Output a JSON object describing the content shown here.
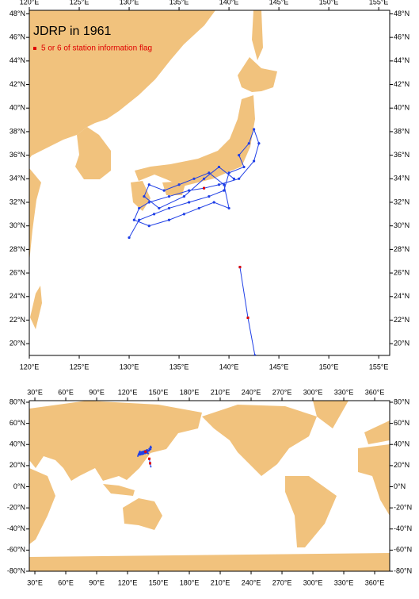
{
  "top_map": {
    "title": "JDRP in 1961",
    "legend": "5 or 6 of station information flag",
    "xlim": [
      120,
      156.1
    ],
    "ylim": [
      19,
      48.3
    ],
    "xticks": [
      {
        "value": 120,
        "label": "120°E"
      },
      {
        "value": 125,
        "label": "125°E"
      },
      {
        "value": 130,
        "label": "130°E"
      },
      {
        "value": 135,
        "label": "135°E"
      },
      {
        "value": 140,
        "label": "140°E"
      },
      {
        "value": 145,
        "label": "145°E"
      },
      {
        "value": 150,
        "label": "150°E"
      },
      {
        "value": 155,
        "label": "155°E"
      }
    ],
    "yticks": [
      {
        "value": 20,
        "label": "20°N"
      },
      {
        "value": 22,
        "label": "22°N"
      },
      {
        "value": 24,
        "label": "24°N"
      },
      {
        "value": 26,
        "label": "26°N"
      },
      {
        "value": 28,
        "label": "28°N"
      },
      {
        "value": 30,
        "label": "30°N"
      },
      {
        "value": 32,
        "label": "32°N"
      },
      {
        "value": 34,
        "label": "34°N"
      },
      {
        "value": 36,
        "label": "36°N"
      },
      {
        "value": 38,
        "label": "38°N"
      },
      {
        "value": 40,
        "label": "40°N"
      },
      {
        "value": 42,
        "label": "42°N"
      },
      {
        "value": 44,
        "label": "44°N"
      },
      {
        "value": 46,
        "label": "46°N"
      },
      {
        "value": 48,
        "label": "48°N"
      }
    ]
  },
  "bottom_map": {
    "xlim": [
      24.6,
      374.6
    ],
    "ylim": [
      -80,
      81.5
    ],
    "xticks": [
      {
        "value": 30,
        "label": "30°E"
      },
      {
        "value": 60,
        "label": "60°E"
      },
      {
        "value": 90,
        "label": "90°E"
      },
      {
        "value": 120,
        "label": "120°E"
      },
      {
        "value": 150,
        "label": "150°E"
      },
      {
        "value": 180,
        "label": "180°E"
      },
      {
        "value": 210,
        "label": "210°E"
      },
      {
        "value": 240,
        "label": "240°E"
      },
      {
        "value": 270,
        "label": "270°E"
      },
      {
        "value": 300,
        "label": "300°E"
      },
      {
        "value": 330,
        "label": "330°E"
      },
      {
        "value": 360,
        "label": "360°E"
      }
    ],
    "yticks": [
      {
        "value": -80,
        "label": "-80°N"
      },
      {
        "value": -60,
        "label": "-60°N"
      },
      {
        "value": -40,
        "label": "-40°N"
      },
      {
        "value": -20,
        "label": "-20°N"
      },
      {
        "value": 0,
        "label": "0°N"
      },
      {
        "value": 20,
        "label": "20°N"
      },
      {
        "value": 40,
        "label": "40°N"
      },
      {
        "value": 60,
        "label": "60°N"
      },
      {
        "value": 80,
        "label": "80°N"
      }
    ]
  },
  "track": {
    "color": "#1f3fe6",
    "lon": [
      130.0,
      131.0,
      132.5,
      134.0,
      136.0,
      138.0,
      139.5,
      140.0,
      141.5,
      141.0,
      142.0,
      142.5,
      143.0,
      142.5,
      141.0,
      139.0,
      137.5,
      136.0,
      134.0,
      132.0,
      131.0,
      130.5,
      132.0,
      134.0,
      135.5,
      137.0,
      138.5,
      140.0,
      139.5,
      138.0,
      136.5,
      135.0,
      133.5,
      132.0,
      131.5,
      133.0,
      135.5,
      137.5,
      139.0,
      140.5,
      null,
      141.1,
      141.9,
      142.6
    ],
    "lat": [
      29.0,
      30.5,
      31.0,
      31.5,
      32.0,
      32.5,
      33.0,
      34.5,
      35.0,
      36.0,
      37.0,
      38.2,
      37.0,
      35.5,
      34.0,
      33.5,
      33.2,
      33.0,
      32.5,
      32.0,
      31.5,
      30.5,
      30.0,
      30.5,
      31.0,
      31.5,
      32.0,
      31.5,
      33.5,
      34.5,
      34.0,
      33.5,
      33.0,
      33.5,
      32.5,
      31.5,
      32.5,
      34.0,
      35.0,
      34.0,
      null,
      26.5,
      22.2,
      19.0
    ]
  },
  "flagged": {
    "color": "#e00000",
    "lon": [
      141.1,
      141.9,
      137.5
    ],
    "lat": [
      26.5,
      22.2,
      33.2
    ]
  }
}
